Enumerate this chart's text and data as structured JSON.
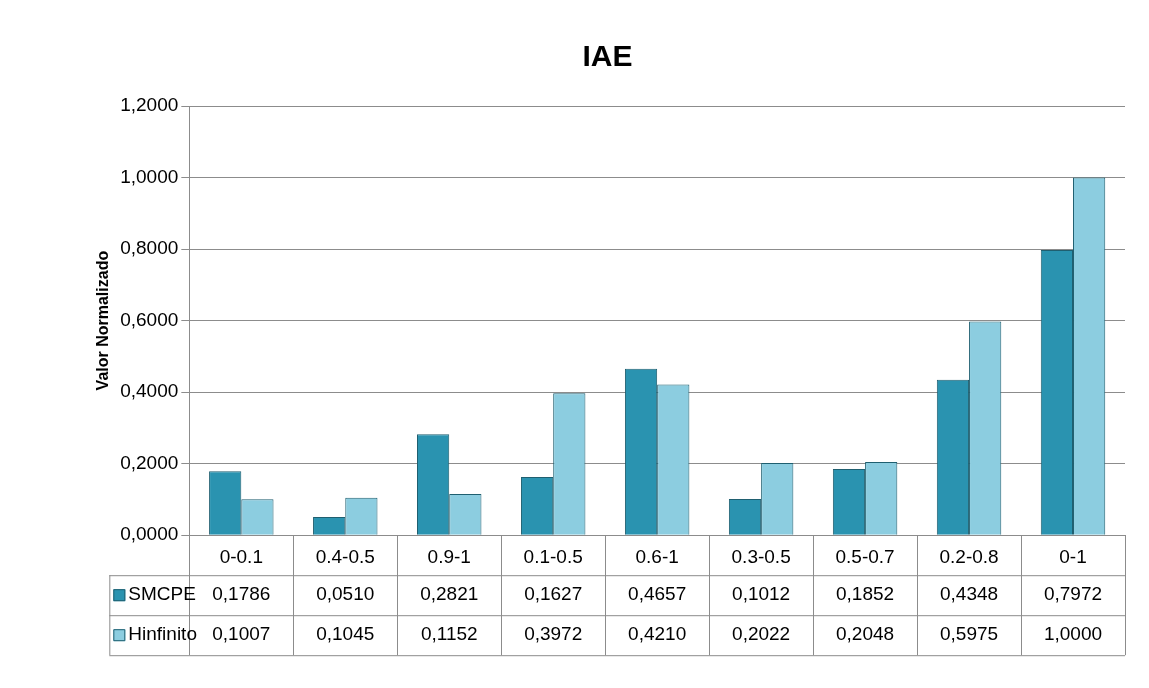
{
  "chart_data": {
    "type": "bar",
    "title": "IAE",
    "ylabel": "Valor Normalizado",
    "categories": [
      "0-0.1",
      "0.4-0.5",
      "0.9-1",
      "0.1-0.5",
      "0.6-1",
      "0.3-0.5",
      "0.5-0.7",
      "0.2-0.8",
      "0-1"
    ],
    "series": [
      {
        "name": "SMCPE",
        "color": "#2a93b0",
        "values": [
          0.1786,
          0.051,
          0.2821,
          0.1627,
          0.4657,
          0.1012,
          0.1852,
          0.4348,
          0.7972
        ],
        "value_labels": [
          "0,1786",
          "0,0510",
          "0,2821",
          "0,1627",
          "0,4657",
          "0,1012",
          "0,1852",
          "0,4348",
          "0,7972"
        ]
      },
      {
        "name": "Hinfinito",
        "color": "#8ccde0",
        "values": [
          0.1007,
          0.1045,
          0.1152,
          0.3972,
          0.421,
          0.2022,
          0.2048,
          0.5975,
          1.0
        ],
        "value_labels": [
          "0,1007",
          "0,1045",
          "0,1152",
          "0,3972",
          "0,4210",
          "0,2022",
          "0,2048",
          "0,5975",
          "1,0000"
        ]
      }
    ],
    "ylim": [
      0,
      1.2
    ],
    "yticks": [
      {
        "value": 0,
        "label": "0,0000"
      },
      {
        "value": 0.2,
        "label": "0,2000"
      },
      {
        "value": 0.4,
        "label": "0,4000"
      },
      {
        "value": 0.6,
        "label": "0,6000"
      },
      {
        "value": 0.8,
        "label": "0,8000"
      },
      {
        "value": 1,
        "label": "1,0000"
      },
      {
        "value": 1.2,
        "label": "1,2000"
      }
    ],
    "grid": "y",
    "legend": "bottom left"
  }
}
